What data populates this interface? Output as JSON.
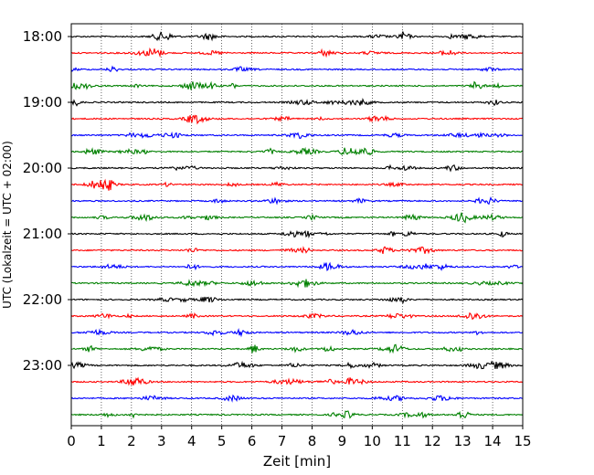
{
  "chart_data": {
    "type": "line",
    "title": "",
    "xlabel": "Zeit  [min]",
    "ylabel": "UTC (Lokalzeit = UTC + 02:00)",
    "xlim": [
      0,
      15
    ],
    "x_ticks": [
      "0",
      "1",
      "2",
      "3",
      "4",
      "5",
      "6",
      "7",
      "8",
      "9",
      "10",
      "11",
      "12",
      "13",
      "14",
      "15"
    ],
    "y_ticks": [
      "18:00",
      "19:00",
      "20:00",
      "21:00",
      "22:00",
      "23:00"
    ],
    "grid": "vertical dotted lines at each minute",
    "trace_interval_min": 15,
    "trace_colors": [
      "#000000",
      "#ff0000",
      "#0000ff",
      "#008000"
    ],
    "traces": [
      {
        "start": "18:00",
        "color": "#000000"
      },
      {
        "start": "18:15",
        "color": "#ff0000"
      },
      {
        "start": "18:30",
        "color": "#0000ff"
      },
      {
        "start": "18:45",
        "color": "#008000"
      },
      {
        "start": "19:00",
        "color": "#000000"
      },
      {
        "start": "19:15",
        "color": "#ff0000"
      },
      {
        "start": "19:30",
        "color": "#0000ff"
      },
      {
        "start": "19:45",
        "color": "#008000"
      },
      {
        "start": "20:00",
        "color": "#000000"
      },
      {
        "start": "20:15",
        "color": "#ff0000"
      },
      {
        "start": "20:30",
        "color": "#0000ff"
      },
      {
        "start": "20:45",
        "color": "#008000"
      },
      {
        "start": "21:00",
        "color": "#000000"
      },
      {
        "start": "21:15",
        "color": "#ff0000"
      },
      {
        "start": "21:30",
        "color": "#0000ff"
      },
      {
        "start": "21:45",
        "color": "#008000"
      },
      {
        "start": "22:00",
        "color": "#000000"
      },
      {
        "start": "22:15",
        "color": "#ff0000"
      },
      {
        "start": "22:30",
        "color": "#0000ff"
      },
      {
        "start": "22:45",
        "color": "#008000"
      },
      {
        "start": "23:00",
        "color": "#000000"
      },
      {
        "start": "23:15",
        "color": "#ff0000"
      },
      {
        "start": "23:30",
        "color": "#0000ff"
      },
      {
        "start": "23:45",
        "color": "#008000"
      }
    ]
  }
}
